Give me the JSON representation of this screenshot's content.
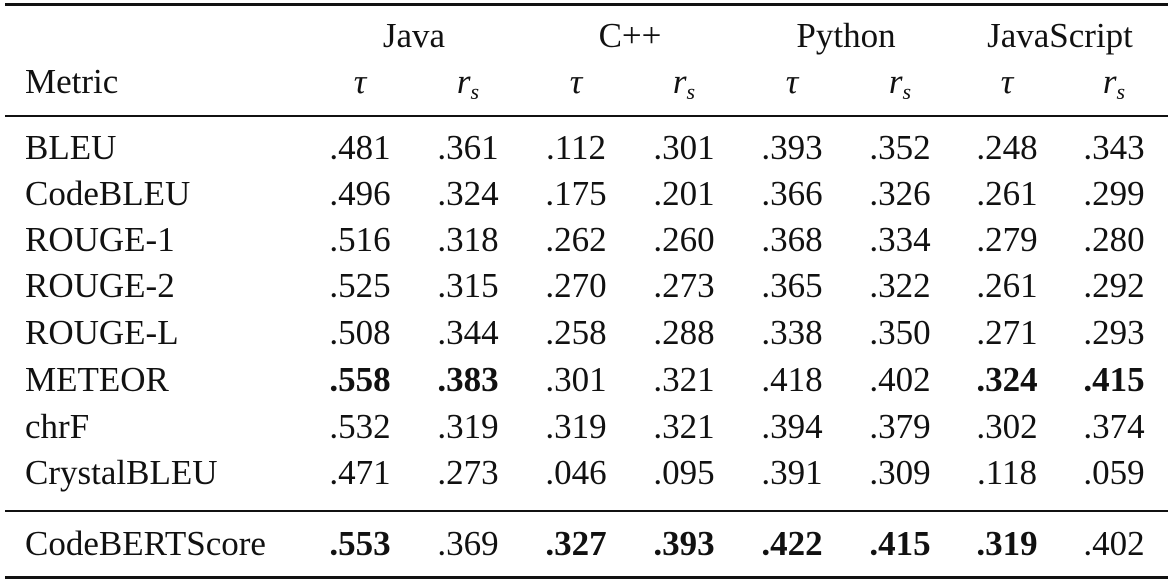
{
  "header": {
    "metric_label": "Metric",
    "languages": [
      "Java",
      "C++",
      "Python",
      "JavaScript"
    ],
    "tau_symbol": "τ",
    "rs_symbol": "r",
    "rs_subscript": "s"
  },
  "rows": [
    {
      "metric": "BLEU",
      "values": [
        ".481",
        ".361",
        ".112",
        ".301",
        ".393",
        ".352",
        ".248",
        ".343"
      ],
      "bold": [
        false,
        false,
        false,
        false,
        false,
        false,
        false,
        false
      ]
    },
    {
      "metric": "CodeBLEU",
      "values": [
        ".496",
        ".324",
        ".175",
        ".201",
        ".366",
        ".326",
        ".261",
        ".299"
      ],
      "bold": [
        false,
        false,
        false,
        false,
        false,
        false,
        false,
        false
      ]
    },
    {
      "metric": "ROUGE-1",
      "values": [
        ".516",
        ".318",
        ".262",
        ".260",
        ".368",
        ".334",
        ".279",
        ".280"
      ],
      "bold": [
        false,
        false,
        false,
        false,
        false,
        false,
        false,
        false
      ]
    },
    {
      "metric": "ROUGE-2",
      "values": [
        ".525",
        ".315",
        ".270",
        ".273",
        ".365",
        ".322",
        ".261",
        ".292"
      ],
      "bold": [
        false,
        false,
        false,
        false,
        false,
        false,
        false,
        false
      ]
    },
    {
      "metric": "ROUGE-L",
      "values": [
        ".508",
        ".344",
        ".258",
        ".288",
        ".338",
        ".350",
        ".271",
        ".293"
      ],
      "bold": [
        false,
        false,
        false,
        false,
        false,
        false,
        false,
        false
      ]
    },
    {
      "metric": "METEOR",
      "values": [
        ".558",
        ".383",
        ".301",
        ".321",
        ".418",
        ".402",
        ".324",
        ".415"
      ],
      "bold": [
        true,
        true,
        false,
        false,
        false,
        false,
        true,
        true
      ]
    },
    {
      "metric": "chrF",
      "values": [
        ".532",
        ".319",
        ".319",
        ".321",
        ".394",
        ".379",
        ".302",
        ".374"
      ],
      "bold": [
        false,
        false,
        false,
        false,
        false,
        false,
        false,
        false
      ]
    },
    {
      "metric": "CrystalBLEU",
      "values": [
        ".471",
        ".273",
        ".046",
        ".095",
        ".391",
        ".309",
        ".118",
        ".059"
      ],
      "bold": [
        false,
        false,
        false,
        false,
        false,
        false,
        false,
        false
      ]
    }
  ],
  "final_row": {
    "metric": "CodeBERTScore",
    "values": [
      ".553",
      ".369",
      ".327",
      ".393",
      ".422",
      ".415",
      ".319",
      ".402"
    ],
    "bold": [
      true,
      false,
      true,
      true,
      true,
      true,
      true,
      false
    ]
  }
}
